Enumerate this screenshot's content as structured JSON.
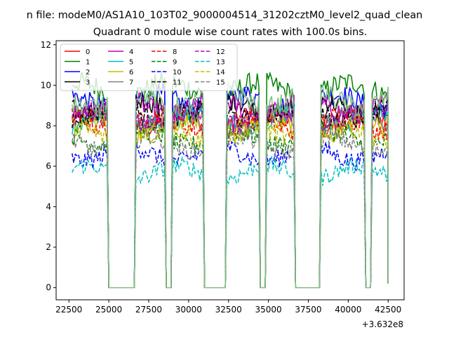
{
  "chart_data": {
    "type": "line",
    "suptitle": "n file: modeM0/AS1A10_103T02_9000004514_31202cztM0_level2_quad_clean",
    "title": "Quadrant 0 module wise count rates with 100.0s bins.",
    "xlabel": "",
    "ylabel": "",
    "offset_label": "+3.632e8",
    "xlim": [
      21700,
      43500
    ],
    "ylim": [
      -0.6,
      12.2
    ],
    "xticks": [
      22500,
      25000,
      27500,
      30000,
      32500,
      35000,
      37500,
      40000,
      42500
    ],
    "yticks": [
      0,
      2,
      4,
      6,
      8,
      10,
      12
    ],
    "segments": [
      [
        22700,
        24900
      ],
      [
        26700,
        28500
      ],
      [
        29000,
        30900
      ],
      [
        32400,
        34400
      ],
      [
        34900,
        36600
      ],
      [
        38300,
        41000
      ],
      [
        41500,
        42500
      ]
    ],
    "baseline_value": 0,
    "gap_tail_value": 0.2,
    "series": [
      {
        "name": "0",
        "color": "#ff0000",
        "dash": "solid",
        "level": 8.2
      },
      {
        "name": "1",
        "color": "#008000",
        "dash": "solid",
        "level": 9.8
      },
      {
        "name": "2",
        "color": "#0000ff",
        "dash": "solid",
        "level": 9.2
      },
      {
        "name": "3",
        "color": "#000000",
        "dash": "solid",
        "level": 8.9
      },
      {
        "name": "4",
        "color": "#bf00bf",
        "dash": "solid",
        "level": 8.9
      },
      {
        "name": "5",
        "color": "#00bfbf",
        "dash": "solid",
        "level": 8.4
      },
      {
        "name": "6",
        "color": "#bfbf00",
        "dash": "solid",
        "level": 7.9
      },
      {
        "name": "7",
        "color": "#808080",
        "dash": "solid",
        "level": 8.3
      },
      {
        "name": "8",
        "color": "#ff0000",
        "dash": "dashed",
        "level": 8.1
      },
      {
        "name": "9",
        "color": "#008000",
        "dash": "dashed",
        "level": 7.4
      },
      {
        "name": "10",
        "color": "#0000ff",
        "dash": "dashed",
        "level": 6.6
      },
      {
        "name": "11",
        "color": "#000000",
        "dash": "dashed",
        "level": 8.6
      },
      {
        "name": "12",
        "color": "#bf00bf",
        "dash": "dashed",
        "level": 8.4
      },
      {
        "name": "13",
        "color": "#00bfbf",
        "dash": "dashed",
        "level": 5.7
      },
      {
        "name": "14",
        "color": "#bfbf00",
        "dash": "dashed",
        "level": 7.6
      },
      {
        "name": "15",
        "color": "#808080",
        "dash": "dashed",
        "level": 7.1
      },
      {
        "name": "",
        "color": "#80c080",
        "dash": "solid",
        "level": 9.3
      }
    ],
    "legend": {
      "placement": "top-left",
      "columns": 4
    }
  }
}
